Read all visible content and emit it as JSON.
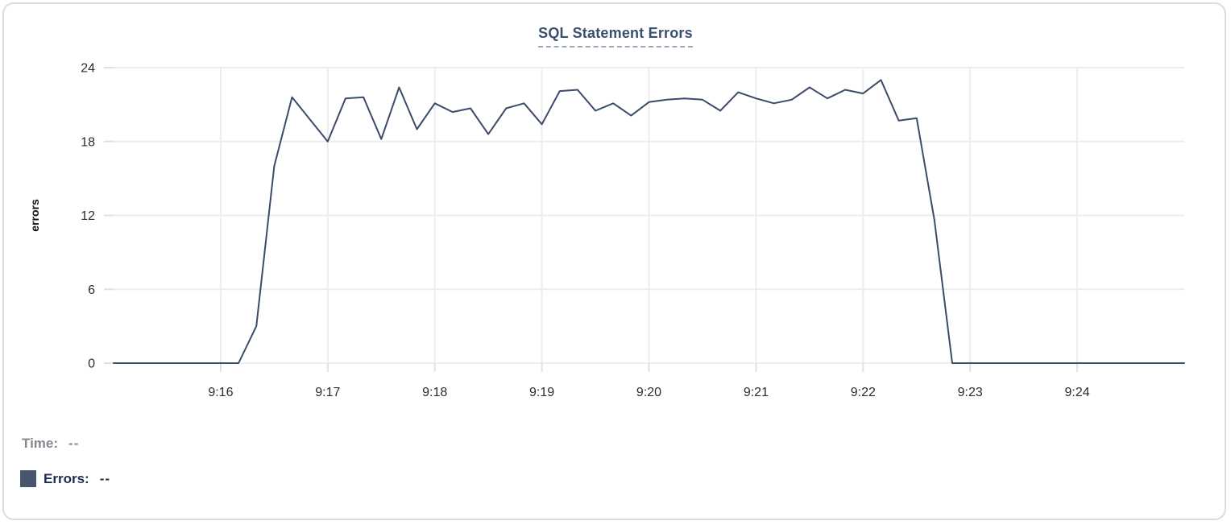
{
  "chart": {
    "title": "SQL Statement Errors",
    "tooltip": {
      "time_label": "Time:",
      "time_value": "--",
      "errors_label": "Errors:",
      "errors_value": "--"
    },
    "colors": {
      "line": "#3b4b6a",
      "grid": "#ededed",
      "tick": "#e0e0e0",
      "tick_text": "#2c2c2c",
      "axis_title_text": "#111111",
      "title_text": "#3a4f6e",
      "title_underline": "#9aa8c0",
      "muted_label": "#85888e",
      "legend_label": "#1c2b52",
      "swatch": "#47556e",
      "card_border": "#dcdcdc"
    }
  },
  "chart_data": {
    "type": "line",
    "title": "SQL Statement Errors",
    "xlabel": "",
    "ylabel": "errors",
    "ylim": [
      0,
      24
    ],
    "y_ticks": [
      0,
      6,
      12,
      18,
      24
    ],
    "x_ticks": [
      {
        "label": "9:16",
        "f": 0.1
      },
      {
        "label": "9:17",
        "f": 0.2
      },
      {
        "label": "9:18",
        "f": 0.3
      },
      {
        "label": "9:19",
        "f": 0.4
      },
      {
        "label": "9:20",
        "f": 0.5
      },
      {
        "label": "9:21",
        "f": 0.6
      },
      {
        "label": "9:22",
        "f": 0.7
      },
      {
        "label": "9:23",
        "f": 0.8
      },
      {
        "label": "9:24",
        "f": 0.9
      }
    ],
    "x_start": "9:15:00",
    "x_end": "9:25:00",
    "sample_interval_seconds": 10,
    "grid": true,
    "legend_position": "bottom-left",
    "series": [
      {
        "name": "Errors",
        "color": "#3b4b6a",
        "values": [
          0,
          0,
          0,
          0,
          0,
          0,
          0,
          0,
          3,
          16,
          21.6,
          19.8,
          18,
          21.5,
          21.6,
          18.2,
          22.4,
          19,
          21.1,
          20.4,
          20.7,
          18.6,
          20.7,
          21.1,
          19.4,
          22.1,
          22.2,
          20.5,
          21.1,
          20.1,
          21.2,
          21.4,
          21.5,
          21.4,
          20.5,
          22,
          21.5,
          21.1,
          21.4,
          22.4,
          21.5,
          22.2,
          21.9,
          23,
          19.7,
          19.9,
          11.6,
          0,
          0,
          0,
          0,
          0,
          0,
          0,
          0,
          0,
          0,
          0,
          0,
          0,
          0
        ]
      }
    ]
  }
}
